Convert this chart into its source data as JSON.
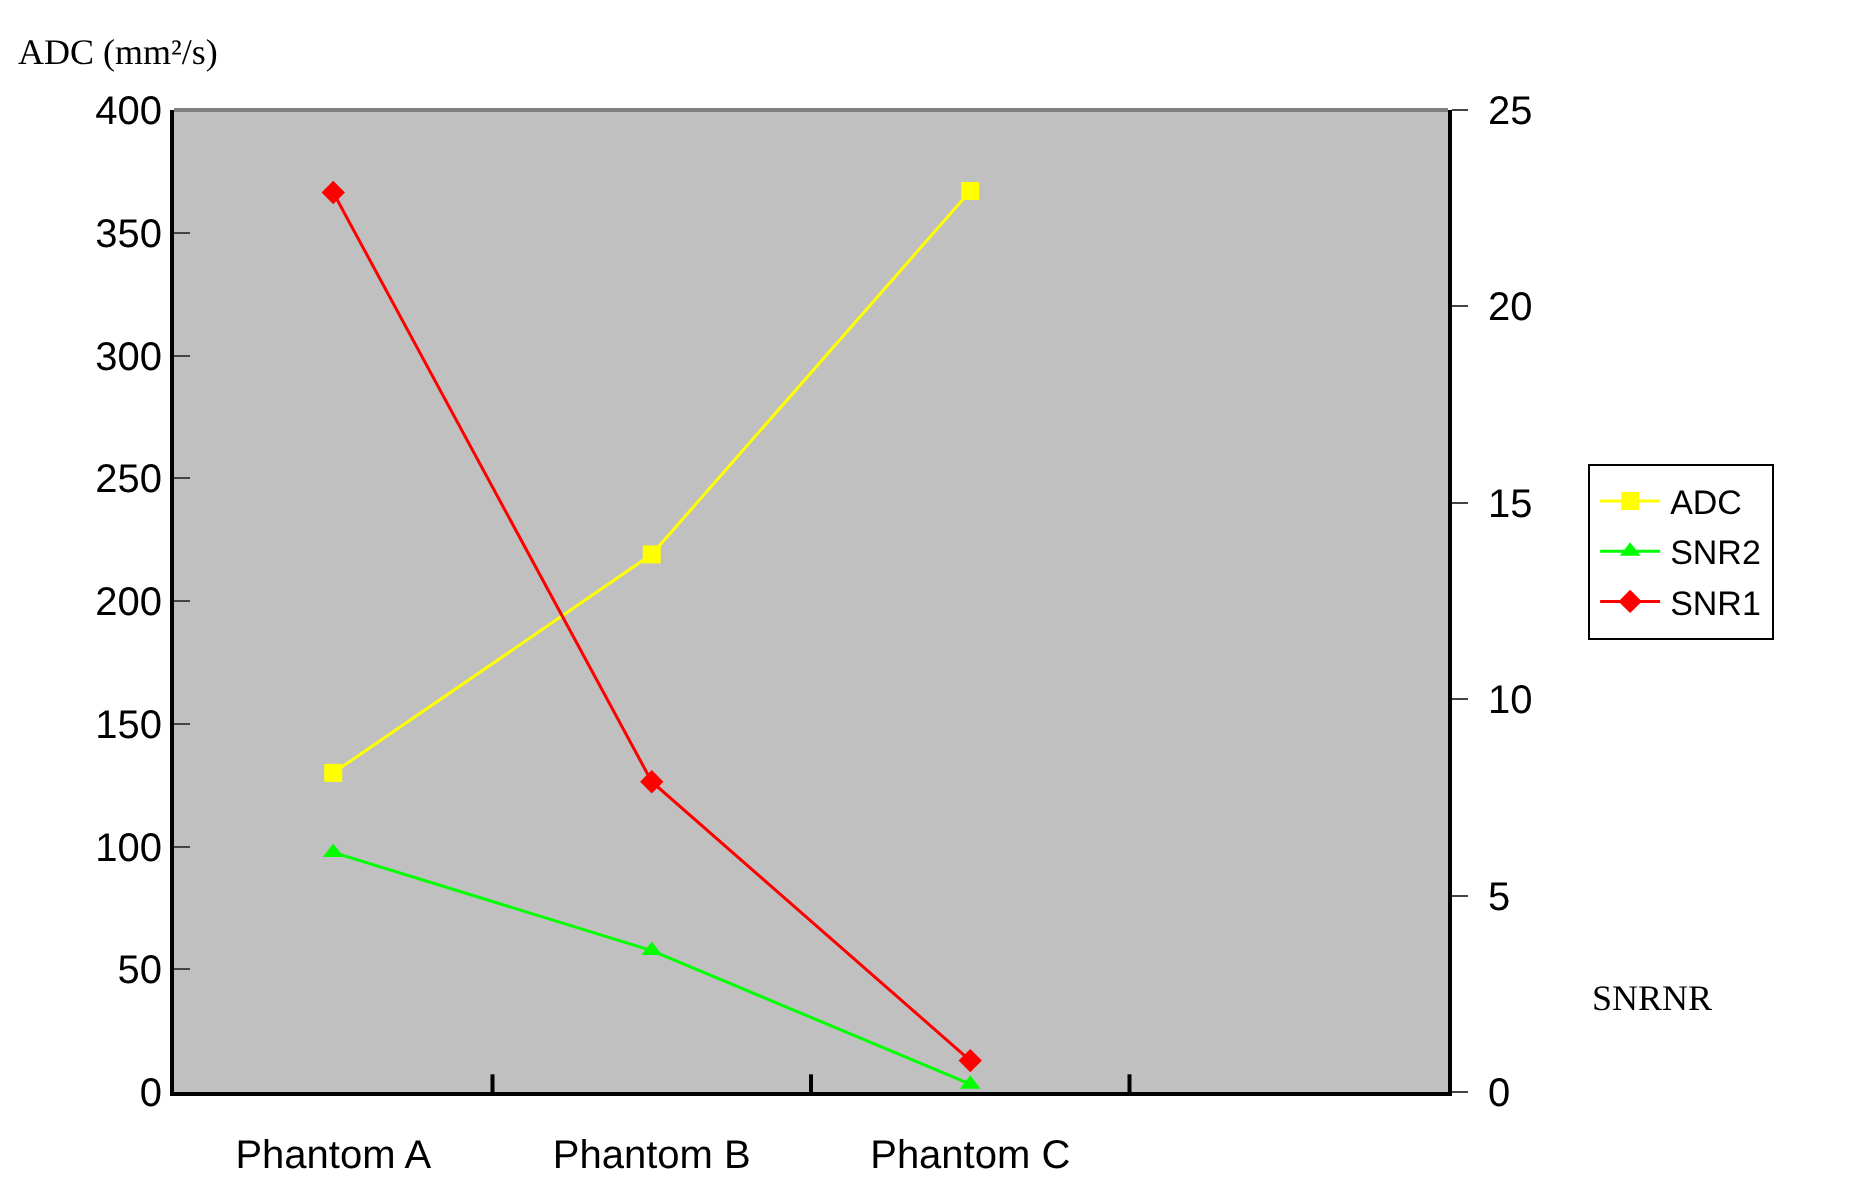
{
  "chart_data": {
    "type": "line",
    "ylabel": "ADC (mm²/s)",
    "y2label": "SNRNR",
    "categories": [
      "Phantom A",
      "Phantom B",
      "Phantom C",
      null
    ],
    "series": [
      {
        "name": "ADC",
        "color": "#ffff00",
        "marker": "square",
        "values": [
          130,
          219,
          367,
          null
        ]
      },
      {
        "name": "SNR2",
        "color": "#00ff00",
        "marker": "triangle",
        "axis": "y2",
        "values": [
          6.1,
          3.6,
          0.2,
          null
        ]
      },
      {
        "name": "SNR1",
        "color": "#ff0000",
        "marker": "diamond",
        "axis": "y2",
        "values": [
          22.9,
          7.9,
          0.8,
          null
        ]
      }
    ],
    "ylim": [
      0,
      400
    ],
    "yticks": [
      0,
      50,
      100,
      150,
      200,
      250,
      300,
      350,
      400
    ],
    "y2lim": [
      0,
      25
    ],
    "y2ticks": [
      0,
      5,
      10,
      15,
      20,
      25
    ],
    "grid": false,
    "legend": "right"
  }
}
